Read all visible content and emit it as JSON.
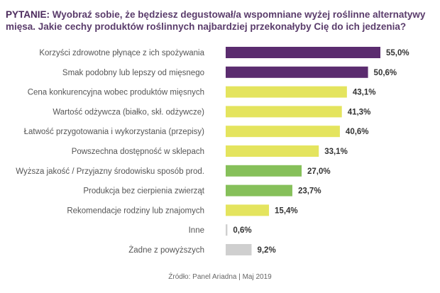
{
  "question": {
    "lead": "PYTANIE:",
    "text": "Wyobraź sobie, że będziesz degustował/a wspomniane wyżej roślinne alternatywy mięsa. Jakie cechy produktów roślinnych najbardziej przekonałyby Cię do ich jedzenia?"
  },
  "colors": {
    "purple": "#5b2c6f",
    "yellow": "#e4e45e",
    "green": "#86c05a",
    "gray": "#cfcfcf"
  },
  "chart_data": {
    "type": "bar",
    "orientation": "horizontal",
    "categories": [
      "Korzyści zdrowotne płynące z ich spożywania",
      "Smak podobny lub lepszy od mięsnego",
      "Cena konkurencyjna wobec produktów mięsnych",
      "Wartość odżywcza (białko, skł. odżywcze)",
      "Łatwość przygotowania i wykorzystania (przepisy)",
      "Powszechna dostępność w sklepach",
      "Wyższa jakość / Przyjazny środowisku sposób prod.",
      "Produkcja bez cierpienia zwierząt",
      "Rekomendacje rodziny lub znajomych",
      "Inne",
      "Żadne z powyższych"
    ],
    "values": [
      55.0,
      50.6,
      43.1,
      41.3,
      40.6,
      33.1,
      27.0,
      23.7,
      15.4,
      0.6,
      9.2
    ],
    "value_labels": [
      "55,0%",
      "50,6%",
      "43,1%",
      "41,3%",
      "40,6%",
      "33,1%",
      "27,0%",
      "23,7%",
      "15,4%",
      "0,6%",
      "9,2%"
    ],
    "bar_colors": [
      "purple",
      "purple",
      "yellow",
      "yellow",
      "yellow",
      "yellow",
      "green",
      "green",
      "yellow",
      "gray",
      "gray"
    ],
    "xlim": [
      0,
      55
    ],
    "grid": false,
    "legend": "none"
  },
  "source": "Źródło: Panel Ariadna | Maj 2019"
}
